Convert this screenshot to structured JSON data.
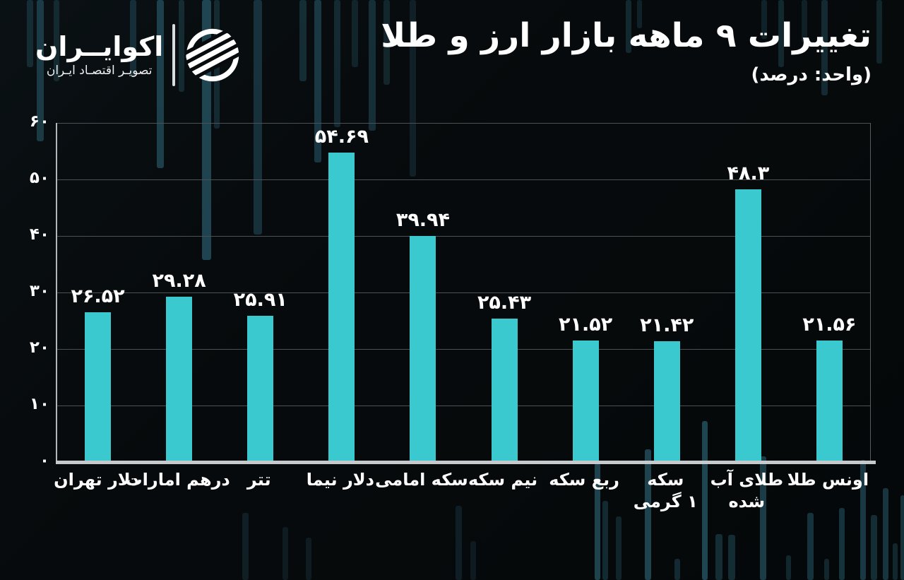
{
  "logo": {
    "name": "اکوایــران",
    "tagline": "تصویـر اقتصـاد ایـران",
    "icon": "ecoiran-logo-icon"
  },
  "header": {
    "title": "تغییرات ۹ ماهه بازار ارز و طلا",
    "subtitle": "(واحد: درصد)"
  },
  "chart_data": {
    "type": "bar",
    "title": "تغییرات ۹ ماهه بازار ارز و طلا",
    "unit_label": "(واحد: درصد)",
    "direction": "rtl",
    "categories": [
      "دلار تهران",
      "درهم امارات",
      "تتر",
      "دلار نیما",
      "سکه امامی",
      "نیم سکه",
      "ربع سکه",
      "سکه ۱ گرمی",
      "طلای آب شده",
      "اونس طلا"
    ],
    "category_lines": [
      [
        "دلار تهران"
      ],
      [
        "درهم امارات"
      ],
      [
        "تتر"
      ],
      [
        "دلار نیما"
      ],
      [
        "سکه امامی"
      ],
      [
        "نیم سکه"
      ],
      [
        "ربع سکه"
      ],
      [
        "سکه",
        "۱ گرمی"
      ],
      [
        "طلای آب",
        "شده"
      ],
      [
        "اونس طلا"
      ]
    ],
    "values": [
      26.52,
      29.28,
      25.91,
      54.69,
      39.94,
      25.43,
      21.52,
      21.42,
      48.3,
      21.56
    ],
    "value_labels": [
      "۲۶.۵۲",
      "۲۹.۲۸",
      "۲۵.۹۱",
      "۵۴.۶۹",
      "۳۹.۹۴",
      "۲۵.۴۳",
      "۲۱.۵۲",
      "۲۱.۴۲",
      "۴۸.۳",
      "۲۱.۵۶"
    ],
    "y_ticks": [
      0,
      10,
      20,
      30,
      40,
      50,
      60
    ],
    "y_tick_labels": [
      "۰",
      "۱۰",
      "۲۰",
      "۳۰",
      "۴۰",
      "۵۰",
      "۶۰"
    ],
    "ylim": [
      0,
      60
    ],
    "grid": true,
    "legend_position": "none",
    "bar_color": "#3AC9CE",
    "background_color": "#070B0D",
    "grid_color": "#4B5154",
    "text_color": "#FFFFFF"
  }
}
